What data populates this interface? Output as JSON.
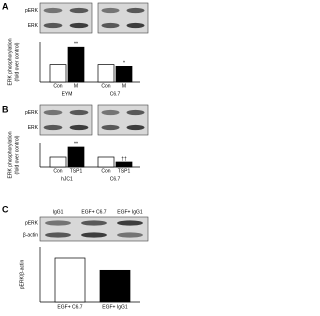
{
  "chart_data": [
    {
      "type": "bar",
      "panel_label": "A",
      "blot_rows": [
        "pERK",
        "ERK"
      ],
      "y_label": [
        "ERK phosphorylation",
        "(fold over control)"
      ],
      "categories": [
        "Con",
        "M",
        "Con",
        "M"
      ],
      "groups": [
        "EYM",
        "C6.7"
      ],
      "values": [
        1,
        2,
        1,
        0.9
      ],
      "colors": [
        "#ffffff",
        "#000000",
        "#ffffff",
        "#000000"
      ],
      "annotations": [
        null,
        "**",
        null,
        "*"
      ],
      "ylim": [
        0,
        2.3
      ]
    },
    {
      "type": "bar",
      "panel_label": "B",
      "blot_rows": [
        "pERK",
        "ERK"
      ],
      "y_label": [
        "ERK phosphorylation",
        "(fold over control)"
      ],
      "categories": [
        "Con",
        "TSP1",
        "Con",
        "TSP1"
      ],
      "groups": [
        "hJC1",
        "C6.7"
      ],
      "values": [
        1,
        2,
        1,
        0.5
      ],
      "colors": [
        "#ffffff",
        "#000000",
        "#ffffff",
        "#000000"
      ],
      "annotations": [
        null,
        "**",
        null,
        "††"
      ],
      "ylim": [
        0,
        2.4
      ]
    },
    {
      "type": "bar",
      "panel_label": "C",
      "blot_rows": [
        "pERK",
        "β-actin"
      ],
      "lane_labels": [
        "IgG1",
        "EGF+ C6.7",
        "EGF+ IgG1"
      ],
      "y_label": [
        "pERK/β-actin"
      ],
      "categories": [
        "EGF+ C6.7",
        "EGF+ IgG1"
      ],
      "values": [
        1,
        0.72
      ],
      "colors": [
        "#ffffff",
        "#000000"
      ],
      "ylim": [
        0,
        1.25
      ]
    }
  ]
}
